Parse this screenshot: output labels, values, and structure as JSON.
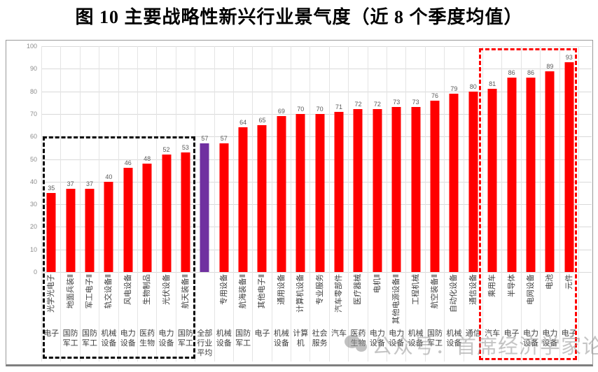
{
  "title": "图 10 主要战略性新兴行业景气度（近 8 个季度均值）",
  "watermark": {
    "icon": "wechat-icon",
    "text": "公众号：首席经济学家论坛"
  },
  "colors": {
    "bar_red": "#FF0000",
    "bar_average_purple": "#7030A0",
    "low_group_box": "#000000",
    "high_group_box": "#FF0000",
    "gridline": "#D9D9D9",
    "value_label": "#595959",
    "axis_label": "#8C8C8C"
  },
  "chart_data": {
    "type": "bar",
    "title": "图 10 主要战略性新兴行业景气度（近 8 个季度均值）",
    "xlabel": "",
    "ylabel": "",
    "ylim": [
      0,
      100
    ],
    "ytick_step": 10,
    "grid": true,
    "legend": "none",
    "bars": [
      {
        "industry": "光学光电子",
        "sector": "电子",
        "value": 35,
        "group": "lowest",
        "is_average": false
      },
      {
        "industry": "地面兵装Ⅱ",
        "sector": "国防军工",
        "value": 37,
        "group": "lowest",
        "is_average": false
      },
      {
        "industry": "军工电子Ⅱ",
        "sector": "国防军工",
        "value": 37,
        "group": "lowest",
        "is_average": false
      },
      {
        "industry": "轨交设备Ⅱ",
        "sector": "机械设备",
        "value": 40,
        "group": "lowest",
        "is_average": false
      },
      {
        "industry": "风电设备",
        "sector": "电力设备",
        "value": 46,
        "group": "lowest",
        "is_average": false
      },
      {
        "industry": "生物制品",
        "sector": "医药生物",
        "value": 48,
        "group": "lowest",
        "is_average": false
      },
      {
        "industry": "光伏设备",
        "sector": "电力设备",
        "value": 52,
        "group": "lowest",
        "is_average": false
      },
      {
        "industry": "航天装备Ⅱ",
        "sector": "国防军工",
        "value": 53,
        "group": "lowest",
        "is_average": false
      },
      {
        "industry": "",
        "sector": "全部行业平均",
        "value": 57,
        "group": "average",
        "is_average": true
      },
      {
        "industry": "专用设备",
        "sector": "机械设备",
        "value": 57,
        "group": "middle",
        "is_average": false
      },
      {
        "industry": "航海装备Ⅱ",
        "sector": "国防军工",
        "value": 64,
        "group": "middle",
        "is_average": false
      },
      {
        "industry": "其他电子Ⅱ",
        "sector": "电子",
        "value": 65,
        "group": "middle",
        "is_average": false
      },
      {
        "industry": "通用设备",
        "sector": "机械设备",
        "value": 69,
        "group": "middle",
        "is_average": false
      },
      {
        "industry": "计算机设备",
        "sector": "计算机",
        "value": 70,
        "group": "middle",
        "is_average": false
      },
      {
        "industry": "专业服务",
        "sector": "社会服务",
        "value": 70,
        "group": "middle",
        "is_average": false
      },
      {
        "industry": "汽车零部件",
        "sector": "汽车",
        "value": 71,
        "group": "middle",
        "is_average": false
      },
      {
        "industry": "医疗器械",
        "sector": "医药生物",
        "value": 72,
        "group": "middle",
        "is_average": false
      },
      {
        "industry": "电机Ⅱ",
        "sector": "电力设备",
        "value": 72,
        "group": "middle",
        "is_average": false
      },
      {
        "industry": "其他电源设备Ⅱ",
        "sector": "电力设备",
        "value": 73,
        "group": "middle",
        "is_average": false
      },
      {
        "industry": "工程机械",
        "sector": "机械设备",
        "value": 73,
        "group": "middle",
        "is_average": false
      },
      {
        "industry": "航空装备Ⅱ",
        "sector": "国防军工",
        "value": 76,
        "group": "middle",
        "is_average": false
      },
      {
        "industry": "自动化设备",
        "sector": "机械设备",
        "value": 79,
        "group": "middle",
        "is_average": false
      },
      {
        "industry": "通信设备",
        "sector": "通信",
        "value": 80,
        "group": "middle",
        "is_average": false
      },
      {
        "industry": "乘用车",
        "sector": "汽车",
        "value": 81,
        "group": "highest",
        "is_average": false
      },
      {
        "industry": "半导体",
        "sector": "电子",
        "value": 86,
        "group": "highest",
        "is_average": false
      },
      {
        "industry": "电网设备",
        "sector": "电力设备",
        "value": 86,
        "group": "highest",
        "is_average": false
      },
      {
        "industry": "电池",
        "sector": "电力设备",
        "value": 89,
        "group": "highest",
        "is_average": false
      },
      {
        "industry": "元件",
        "sector": "电子",
        "value": 93,
        "group": "highest",
        "is_average": false
      }
    ]
  }
}
